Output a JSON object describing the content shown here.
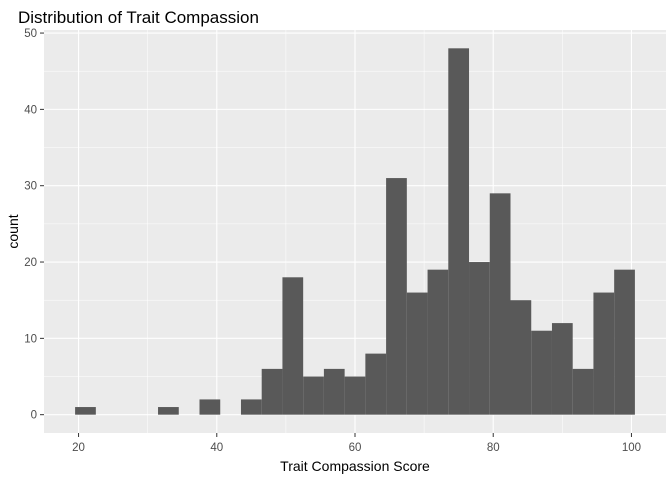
{
  "chart_data": {
    "type": "bar",
    "title": "Distribution of Trait Compassion",
    "xlabel": "Trait Compassion Score",
    "ylabel": "count",
    "xlim": [
      15,
      105
    ],
    "ylim": [
      -2.4,
      50.4
    ],
    "x_ticks": [
      20,
      40,
      60,
      80,
      100
    ],
    "y_ticks": [
      0,
      10,
      20,
      30,
      40,
      50
    ],
    "x_tick_labels": [
      "20",
      "40",
      "60",
      "80",
      "100"
    ],
    "y_tick_labels": [
      "0",
      "10",
      "20",
      "30",
      "40",
      "50"
    ],
    "grid": true,
    "bin_width": 3,
    "bar_color": "#595959",
    "panel_color": "#ebebeb",
    "bins": [
      {
        "x": 21.0,
        "count": 1
      },
      {
        "x": 33.0,
        "count": 1
      },
      {
        "x": 39.0,
        "count": 2
      },
      {
        "x": 45.0,
        "count": 2
      },
      {
        "x": 48.0,
        "count": 6
      },
      {
        "x": 51.0,
        "count": 18
      },
      {
        "x": 54.0,
        "count": 5
      },
      {
        "x": 57.0,
        "count": 6
      },
      {
        "x": 60.0,
        "count": 5
      },
      {
        "x": 63.0,
        "count": 8
      },
      {
        "x": 66.0,
        "count": 31
      },
      {
        "x": 69.0,
        "count": 16
      },
      {
        "x": 72.0,
        "count": 19
      },
      {
        "x": 75.0,
        "count": 48
      },
      {
        "x": 78.0,
        "count": 20
      },
      {
        "x": 81.0,
        "count": 29
      },
      {
        "x": 84.0,
        "count": 15
      },
      {
        "x": 87.0,
        "count": 11
      },
      {
        "x": 90.0,
        "count": 12
      },
      {
        "x": 93.0,
        "count": 6
      },
      {
        "x": 96.0,
        "count": 16
      },
      {
        "x": 99.0,
        "count": 19
      }
    ]
  }
}
